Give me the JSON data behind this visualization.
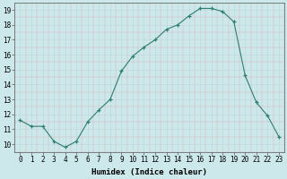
{
  "x": [
    0,
    1,
    2,
    3,
    4,
    5,
    6,
    7,
    8,
    9,
    10,
    11,
    12,
    13,
    14,
    15,
    16,
    17,
    18,
    19,
    20,
    21,
    22,
    23
  ],
  "y": [
    11.6,
    11.2,
    11.2,
    10.2,
    9.8,
    10.2,
    11.5,
    12.3,
    13.0,
    14.9,
    15.9,
    16.5,
    17.0,
    17.7,
    18.0,
    18.6,
    19.1,
    19.1,
    18.9,
    18.2,
    14.6,
    12.8,
    11.9,
    10.5
  ],
  "line_color": "#2e7d6e",
  "marker": "+",
  "marker_size": 3,
  "xlabel": "Humidex (Indice chaleur)",
  "xlim": [
    -0.5,
    23.5
  ],
  "ylim": [
    9.5,
    19.5
  ],
  "xtick_labels": [
    "0",
    "1",
    "2",
    "3",
    "4",
    "5",
    "6",
    "7",
    "8",
    "9",
    "10",
    "11",
    "12",
    "13",
    "14",
    "15",
    "16",
    "17",
    "18",
    "19",
    "20",
    "21",
    "22",
    "23"
  ],
  "ytick_values": [
    10,
    11,
    12,
    13,
    14,
    15,
    16,
    17,
    18,
    19
  ],
  "background_color": "#cce8ea",
  "grid_color": "#c0d8da",
  "xlabel_fontsize": 6.5,
  "tick_fontsize": 5.5
}
